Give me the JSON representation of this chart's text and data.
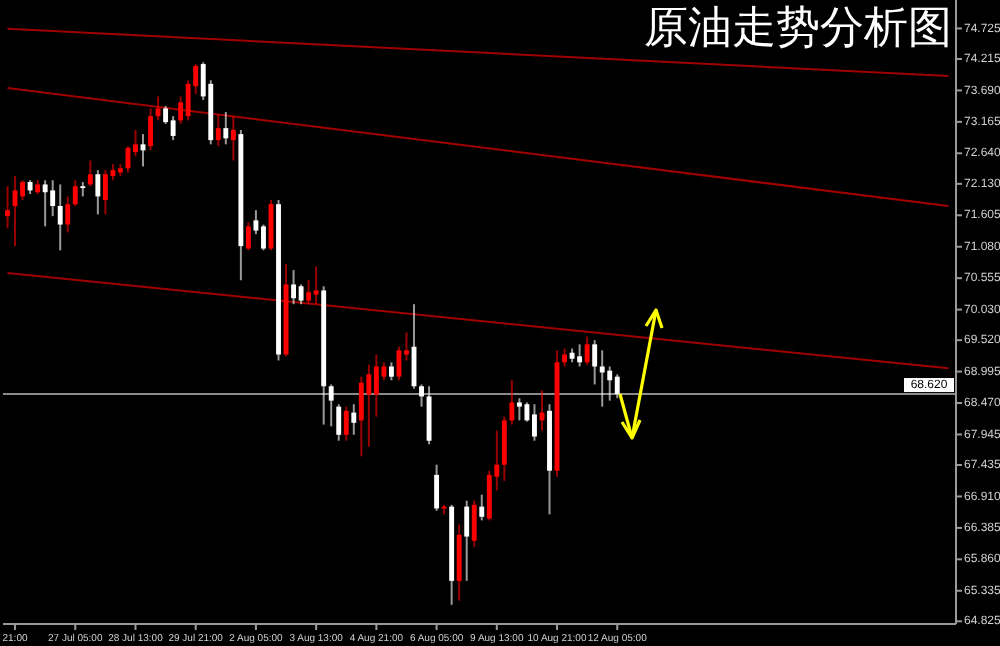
{
  "chart_data": {
    "type": "candlestick",
    "title": "原油走势分析图",
    "categories": [
      null,
      "21:00",
      null,
      null,
      null,
      null,
      null,
      null,
      null,
      "27 Jul 05:00",
      null,
      null,
      null,
      null,
      null,
      null,
      null,
      "28 Jul 13:00",
      null,
      null,
      null,
      null,
      null,
      null,
      null,
      "29 Jul 21:00",
      null,
      null,
      null,
      null,
      null,
      null,
      null,
      "2 Aug 05:00",
      null,
      null,
      null,
      null,
      null,
      null,
      null,
      "3 Aug 13:00",
      null,
      null,
      null,
      null,
      null,
      null,
      null,
      "4 Aug 21:00",
      null,
      null,
      null,
      null,
      null,
      null,
      null,
      "6 Aug 05:00",
      null,
      null,
      null,
      null,
      null,
      null,
      null,
      "9 Aug 13:00",
      null,
      null,
      null,
      null,
      null,
      null,
      null,
      "10 Aug 21:00",
      null,
      null,
      null,
      null,
      null,
      null,
      null,
      "12 Aug 05:00",
      null,
      null,
      null,
      null,
      null,
      null,
      null,
      null,
      null,
      null,
      null,
      null,
      null,
      null,
      null,
      null,
      null,
      null,
      null,
      null,
      null,
      null,
      null,
      null,
      null,
      null,
      null,
      null,
      null,
      null,
      null,
      null,
      null,
      null,
      null,
      null,
      null,
      null,
      null,
      null,
      null,
      null,
      null,
      null
    ],
    "ohlc": [
      [
        71.59,
        72.09,
        71.39,
        71.69
      ],
      [
        71.76,
        72.26,
        71.09,
        72.02
      ],
      [
        71.92,
        72.19,
        71.86,
        72.16
      ],
      [
        72.16,
        72.19,
        71.96,
        72.02
      ],
      [
        71.99,
        72.19,
        71.96,
        72.12
      ],
      [
        72.12,
        72.19,
        71.42,
        71.99
      ],
      [
        72.02,
        72.19,
        71.59,
        71.76
      ],
      [
        71.76,
        72.12,
        71.02,
        71.45
      ],
      [
        71.45,
        71.92,
        71.32,
        71.79
      ],
      [
        71.79,
        72.19,
        71.76,
        72.09
      ],
      [
        72.09,
        72.16,
        71.92,
        72.06
      ],
      [
        72.12,
        72.52,
        72.09,
        72.29
      ],
      [
        72.29,
        72.36,
        71.62,
        71.92
      ],
      [
        71.86,
        72.36,
        71.62,
        72.29
      ],
      [
        72.26,
        72.46,
        72.19,
        72.36
      ],
      [
        72.32,
        72.46,
        72.26,
        72.39
      ],
      [
        72.39,
        72.76,
        72.32,
        72.73
      ],
      [
        72.66,
        73.03,
        72.59,
        72.79
      ],
      [
        72.79,
        72.96,
        72.42,
        72.69
      ],
      [
        72.76,
        73.39,
        72.69,
        73.26
      ],
      [
        73.26,
        73.59,
        73.19,
        73.39
      ],
      [
        73.39,
        73.43,
        73.13,
        73.16
      ],
      [
        73.19,
        73.26,
        72.86,
        72.93
      ],
      [
        73.19,
        73.59,
        73.13,
        73.49
      ],
      [
        73.26,
        73.86,
        73.19,
        73.8
      ],
      [
        73.76,
        74.13,
        73.63,
        74.1
      ],
      [
        74.13,
        74.16,
        73.53,
        73.59
      ],
      [
        73.8,
        73.86,
        72.79,
        72.86
      ],
      [
        72.86,
        73.29,
        72.76,
        73.06
      ],
      [
        73.06,
        73.33,
        72.79,
        72.89
      ],
      [
        72.86,
        73.26,
        72.52,
        73.03
      ],
      [
        72.96,
        73.03,
        70.52,
        71.09
      ],
      [
        71.05,
        71.49,
        71.02,
        71.42
      ],
      [
        71.52,
        71.69,
        71.29,
        71.35
      ],
      [
        71.42,
        71.45,
        71.02,
        71.05
      ],
      [
        71.05,
        71.86,
        71.02,
        71.79
      ],
      [
        71.79,
        71.86,
        69.18,
        69.28
      ],
      [
        69.28,
        70.79,
        69.25,
        70.45
      ],
      [
        70.45,
        70.69,
        70.12,
        70.22
      ],
      [
        70.42,
        70.45,
        70.12,
        70.18
      ],
      [
        70.18,
        70.52,
        70.12,
        70.32
      ],
      [
        70.28,
        70.75,
        70.12,
        70.35
      ],
      [
        70.35,
        70.42,
        68.11,
        68.75
      ],
      [
        68.75,
        68.78,
        68.08,
        68.51
      ],
      [
        68.41,
        68.45,
        67.84,
        67.94
      ],
      [
        67.94,
        68.41,
        67.84,
        68.34
      ],
      [
        68.31,
        68.45,
        67.94,
        68.14
      ],
      [
        68.18,
        68.91,
        67.58,
        68.81
      ],
      [
        68.61,
        69.11,
        67.74,
        68.95
      ],
      [
        68.61,
        69.28,
        68.24,
        69.08
      ],
      [
        68.91,
        69.15,
        68.85,
        69.08
      ],
      [
        69.08,
        69.15,
        68.85,
        68.91
      ],
      [
        68.91,
        69.41,
        68.85,
        69.35
      ],
      [
        69.28,
        69.65,
        69.18,
        69.35
      ],
      [
        69.41,
        70.12,
        68.71,
        68.75
      ],
      [
        68.75,
        68.78,
        68.41,
        68.58
      ],
      [
        68.58,
        68.75,
        67.78,
        67.84
      ],
      [
        67.27,
        67.44,
        66.67,
        66.71
      ],
      [
        66.71,
        66.77,
        66.61,
        66.74
      ],
      [
        66.74,
        66.77,
        65.1,
        65.5
      ],
      [
        65.5,
        66.44,
        65.17,
        66.27
      ],
      [
        66.74,
        66.84,
        65.5,
        66.24
      ],
      [
        66.17,
        66.84,
        66.07,
        66.77
      ],
      [
        66.74,
        66.94,
        66.51,
        66.57
      ],
      [
        66.54,
        67.34,
        66.51,
        67.27
      ],
      [
        67.24,
        68.01,
        67.01,
        67.44
      ],
      [
        67.44,
        68.24,
        67.17,
        68.18
      ],
      [
        68.18,
        68.85,
        68.11,
        68.48
      ],
      [
        68.48,
        68.55,
        68.18,
        68.41
      ],
      [
        68.45,
        68.48,
        68.16,
        68.18
      ],
      [
        68.28,
        68.45,
        67.84,
        67.91
      ],
      [
        68.18,
        68.68,
        68.01,
        68.31
      ],
      [
        68.34,
        68.45,
        66.61,
        67.34
      ],
      [
        67.34,
        69.35,
        67.24,
        69.15
      ],
      [
        69.15,
        69.38,
        69.08,
        69.28
      ],
      [
        69.31,
        69.38,
        69.15,
        69.21
      ],
      [
        69.25,
        69.45,
        69.08,
        69.15
      ],
      [
        69.15,
        69.58,
        69.11,
        69.45
      ],
      [
        69.45,
        69.52,
        68.78,
        69.08
      ],
      [
        69.08,
        69.35,
        68.41,
        68.98
      ],
      [
        69.01,
        69.08,
        68.51,
        68.85
      ],
      [
        68.91,
        68.95,
        68.55,
        68.62
      ],
      null,
      null,
      null,
      null,
      null,
      null,
      null,
      null,
      null,
      null,
      null,
      null,
      null,
      null,
      null,
      null,
      null,
      null,
      null,
      null,
      null,
      null,
      null,
      null,
      null,
      null,
      null,
      null,
      null,
      null,
      null,
      null,
      null,
      null,
      null,
      null,
      null,
      null,
      null,
      null,
      null,
      null,
      null,
      null
    ],
    "colors": [
      "#ff0000",
      "#ff0000",
      "#ff0000",
      "#ffffff",
      "#ff0000",
      "#ffffff",
      "#ffffff",
      "#ffffff",
      "#ff0000",
      "#ff0000",
      "#ffffff",
      "#ff0000",
      "#ffffff",
      "#ff0000",
      "#ff0000",
      "#ff0000",
      "#ff0000",
      "#ff0000",
      "#ffffff",
      "#ff0000",
      "#ff0000",
      "#ffffff",
      "#ffffff",
      "#ff0000",
      "#ff0000",
      "#ff0000",
      "#ffffff",
      "#ffffff",
      "#ff0000",
      "#ffffff",
      "#ff0000",
      "#ffffff",
      "#ff0000",
      "#ffffff",
      "#ffffff",
      "#ff0000",
      "#ffffff",
      "#ff0000",
      "#ffffff",
      "#ffffff",
      "#ff0000",
      "#ff0000",
      "#ffffff",
      "#ffffff",
      "#ffffff",
      "#ff0000",
      "#ffffff",
      "#ff0000",
      "#ff0000",
      "#ff0000",
      "#ff0000",
      "#ffffff",
      "#ff0000",
      "#ff0000",
      "#ffffff",
      "#ffffff",
      "#ffffff",
      "#ffffff",
      "#ff0000",
      "#ffffff",
      "#ff0000",
      "#ffffff",
      "#ff0000",
      "#ffffff",
      "#ff0000",
      "#ff0000",
      "#ff0000",
      "#ff0000",
      "#ffffff",
      "#ffffff",
      "#ffffff",
      "#ff0000",
      "#ffffff",
      "#ff0000",
      "#ff0000",
      "#ffffff",
      "#ffffff",
      "#ff0000",
      "#ffffff",
      "#ffffff",
      "#ffffff",
      "#ffffff",
      null,
      null,
      null,
      null,
      null,
      null,
      null,
      null,
      null,
      null,
      null,
      null,
      null,
      null,
      null,
      null,
      null,
      null,
      null,
      null,
      null,
      null,
      null,
      null,
      null,
      null,
      null,
      null,
      null,
      null,
      null,
      null,
      null,
      null,
      null,
      null,
      null,
      null,
      null,
      null,
      null,
      null,
      null,
      null
    ],
    "series": [
      {
        "type": "line",
        "color": "#a00000",
        "values": [
          74.72,
          null,
          null,
          null,
          null,
          null,
          null,
          null,
          null,
          null,
          null,
          null,
          null,
          null,
          null,
          null,
          null,
          null,
          null,
          null,
          null,
          null,
          null,
          null,
          null,
          null,
          null,
          null,
          null,
          null,
          null,
          null,
          null,
          null,
          null,
          null,
          null,
          null,
          null,
          null,
          null,
          null,
          null,
          null,
          null,
          null,
          null,
          null,
          null,
          null,
          null,
          null,
          null,
          null,
          null,
          null,
          null,
          null,
          null,
          null,
          null,
          null,
          null,
          null,
          null,
          null,
          null,
          null,
          null,
          null,
          null,
          null,
          null,
          null,
          null,
          null,
          null,
          null,
          null,
          null,
          null,
          null,
          null,
          null,
          null,
          null,
          null,
          null,
          null,
          null,
          null,
          null,
          null,
          null,
          null,
          null,
          null,
          null,
          null,
          null,
          null,
          null,
          null,
          null,
          null,
          null,
          null,
          null,
          null,
          null,
          null,
          null,
          null,
          null,
          null,
          null,
          null,
          null,
          null,
          null,
          null,
          null,
          null,
          null,
          null,
          73.93
        ]
      },
      {
        "type": "line",
        "color": "#a00000",
        "values": [
          73.73,
          null,
          null,
          null,
          null,
          null,
          null,
          null,
          null,
          null,
          null,
          null,
          null,
          null,
          null,
          null,
          null,
          null,
          null,
          null,
          null,
          null,
          null,
          null,
          null,
          null,
          null,
          null,
          null,
          null,
          null,
          null,
          null,
          null,
          null,
          null,
          null,
          null,
          null,
          null,
          null,
          null,
          null,
          null,
          null,
          null,
          null,
          null,
          null,
          null,
          null,
          null,
          null,
          null,
          null,
          null,
          null,
          null,
          null,
          null,
          null,
          null,
          null,
          null,
          null,
          null,
          null,
          null,
          null,
          null,
          null,
          null,
          null,
          null,
          null,
          null,
          null,
          null,
          null,
          null,
          null,
          null,
          null,
          null,
          null,
          null,
          null,
          null,
          null,
          null,
          null,
          null,
          null,
          null,
          null,
          null,
          null,
          null,
          null,
          null,
          null,
          null,
          null,
          null,
          null,
          null,
          null,
          null,
          null,
          null,
          null,
          null,
          null,
          null,
          null,
          null,
          null,
          null,
          null,
          null,
          null,
          null,
          null,
          null,
          null,
          71.76
        ]
      },
      {
        "type": "line",
        "color": "#a00000",
        "values": [
          70.64,
          null,
          null,
          null,
          null,
          null,
          null,
          null,
          null,
          null,
          null,
          null,
          null,
          null,
          null,
          null,
          null,
          null,
          null,
          null,
          null,
          null,
          null,
          null,
          null,
          null,
          null,
          null,
          null,
          null,
          null,
          null,
          null,
          null,
          null,
          null,
          null,
          null,
          null,
          null,
          null,
          null,
          null,
          null,
          null,
          null,
          null,
          null,
          null,
          null,
          null,
          null,
          null,
          null,
          null,
          null,
          null,
          null,
          null,
          null,
          null,
          null,
          null,
          null,
          null,
          null,
          null,
          null,
          null,
          null,
          null,
          null,
          null,
          null,
          null,
          null,
          null,
          null,
          null,
          null,
          null,
          null,
          null,
          null,
          null,
          null,
          null,
          null,
          null,
          null,
          null,
          null,
          null,
          null,
          null,
          null,
          null,
          null,
          null,
          null,
          null,
          null,
          null,
          null,
          null,
          null,
          null,
          null,
          null,
          null,
          null,
          null,
          null,
          null,
          null,
          null,
          null,
          null,
          null,
          null,
          null,
          null,
          null,
          null,
          null,
          69.05
        ]
      }
    ],
    "ylim": [
      64.78,
      75.2
    ],
    "yticks": [
      {
        "value": 74.725,
        "label": "74.725"
      },
      {
        "value": 74.215,
        "label": "74.215"
      },
      {
        "value": 73.69,
        "label": "73.690"
      },
      {
        "value": 73.165,
        "label": "73.165"
      },
      {
        "value": 72.64,
        "label": "72.640"
      },
      {
        "value": 72.13,
        "label": "72.130"
      },
      {
        "value": 71.605,
        "label": "71.605"
      },
      {
        "value": 71.08,
        "label": "71.080"
      },
      {
        "value": 70.555,
        "label": "70.555"
      },
      {
        "value": 70.03,
        "label": "70.030"
      },
      {
        "value": 69.52,
        "label": "69.520"
      },
      {
        "value": 68.995,
        "label": "68.995"
      },
      {
        "value": 68.47,
        "label": "68.470"
      },
      {
        "value": 67.945,
        "label": "67.945"
      },
      {
        "value": 67.435,
        "label": "67.435"
      },
      {
        "value": 66.91,
        "label": "66.910"
      },
      {
        "value": 66.385,
        "label": "66.385"
      },
      {
        "value": 65.86,
        "label": "65.860"
      },
      {
        "value": 65.335,
        "label": "65.335"
      },
      {
        "value": 64.825,
        "label": "64.825"
      }
    ],
    "ref_lines": [
      {
        "axis": "y",
        "value": 68.62,
        "label": "68.620",
        "color": "#8a8a8a"
      }
    ]
  }
}
